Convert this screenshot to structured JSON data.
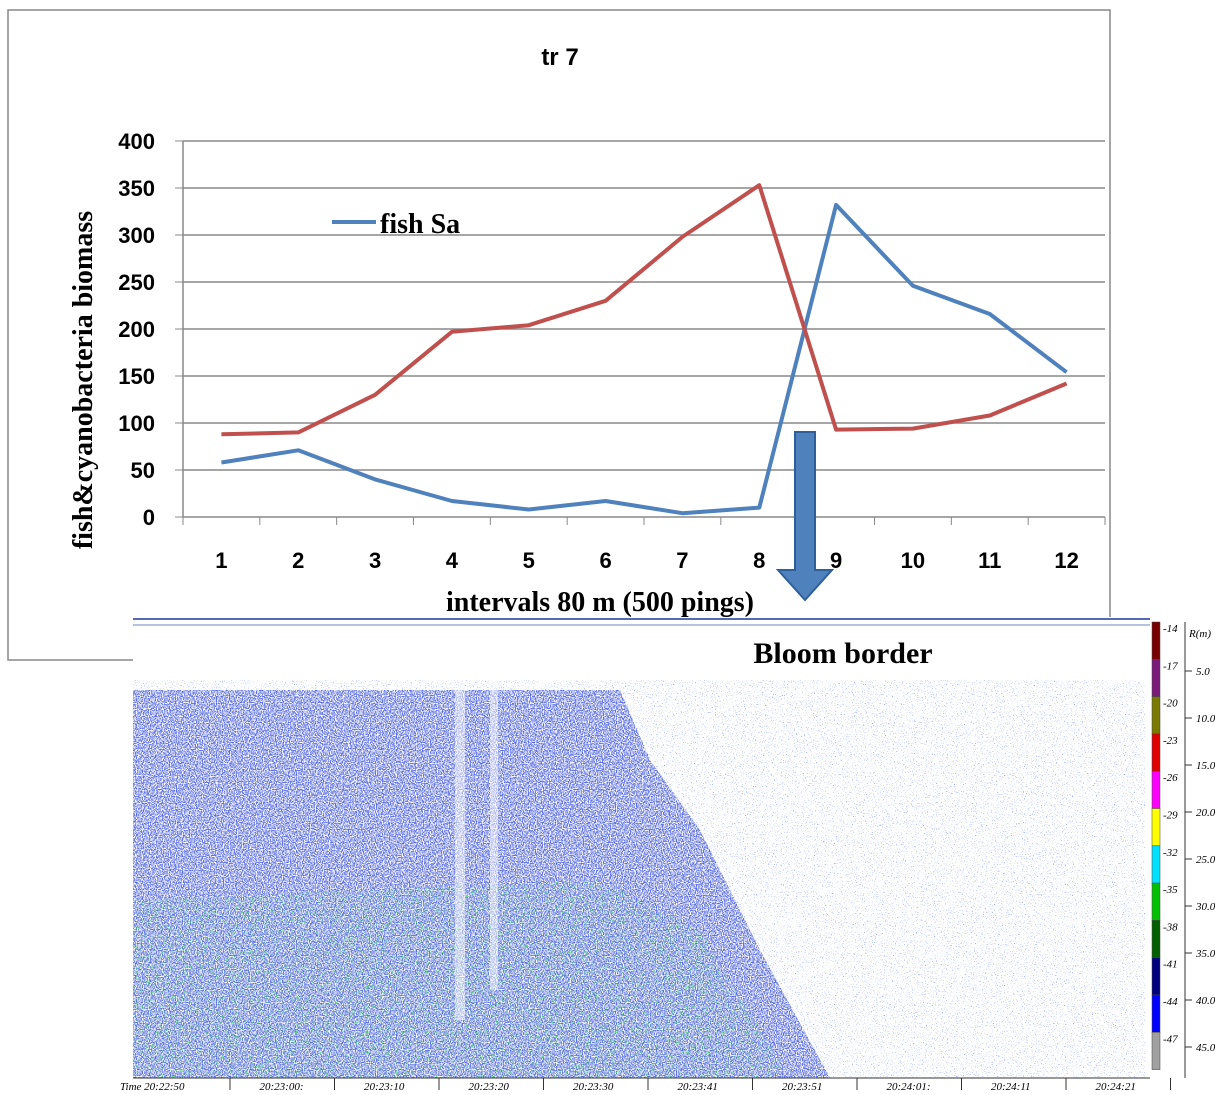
{
  "chart_data": {
    "type": "line",
    "title": "tr 7",
    "y_label": "fish&cyanobacteria biomass",
    "x_label": "intervals 80 m (500 pings)",
    "categories": [
      "1",
      "2",
      "3",
      "4",
      "5",
      "6",
      "7",
      "8",
      "9",
      "10",
      "11",
      "12"
    ],
    "series": [
      {
        "name": "fish Sa",
        "color": "#4f81bd",
        "values": [
          58,
          71,
          40,
          17,
          8,
          17,
          4,
          10,
          332,
          246,
          216,
          154
        ]
      },
      {
        "color": "#c0504d",
        "values": [
          88,
          90,
          130,
          197,
          204,
          230,
          298,
          353,
          93,
          94,
          108,
          142
        ]
      }
    ],
    "ylim": [
      0,
      400
    ],
    "yticks": [
      0,
      50,
      100,
      150,
      200,
      250,
      300,
      350,
      400
    ],
    "grid": true
  },
  "echogram": {
    "annotation": "Bloom border",
    "colorbar_labels": [
      "-14",
      "-17",
      "-20",
      "-23",
      "-26",
      "-29",
      "-32",
      "-35",
      "-38",
      "-41",
      "-44",
      "-47"
    ],
    "range_label": "R(m)",
    "range_ticks": [
      "5.0",
      "10.0",
      "15.0",
      "20.0",
      "25.0",
      "30.0",
      "35.0",
      "40.0",
      "45.0"
    ],
    "time_labels": [
      "Time 20:22:50",
      "20:23:00:",
      "20:23:10",
      "20:23:20",
      "20:23:30",
      "20:23:41",
      "20:23:51",
      "20:24:01:",
      "20:24:11",
      "20:24:21"
    ]
  }
}
